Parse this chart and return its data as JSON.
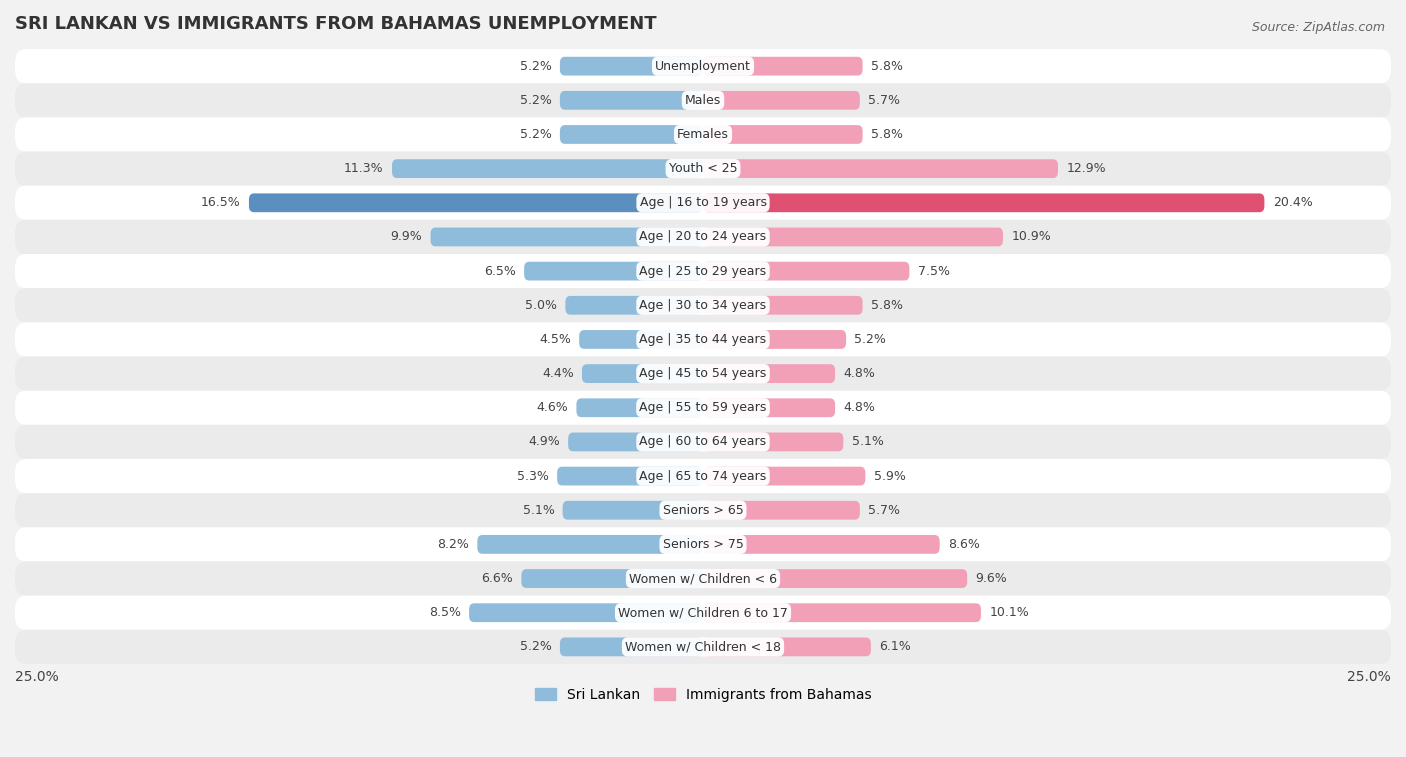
{
  "title": "SRI LANKAN VS IMMIGRANTS FROM BAHAMAS UNEMPLOYMENT",
  "source": "Source: ZipAtlas.com",
  "categories": [
    "Unemployment",
    "Males",
    "Females",
    "Youth < 25",
    "Age | 16 to 19 years",
    "Age | 20 to 24 years",
    "Age | 25 to 29 years",
    "Age | 30 to 34 years",
    "Age | 35 to 44 years",
    "Age | 45 to 54 years",
    "Age | 55 to 59 years",
    "Age | 60 to 64 years",
    "Age | 65 to 74 years",
    "Seniors > 65",
    "Seniors > 75",
    "Women w/ Children < 6",
    "Women w/ Children 6 to 17",
    "Women w/ Children < 18"
  ],
  "sri_lankan": [
    5.2,
    5.2,
    5.2,
    11.3,
    16.5,
    9.9,
    6.5,
    5.0,
    4.5,
    4.4,
    4.6,
    4.9,
    5.3,
    5.1,
    8.2,
    6.6,
    8.5,
    5.2
  ],
  "immigrants_bahamas": [
    5.8,
    5.7,
    5.8,
    12.9,
    20.4,
    10.9,
    7.5,
    5.8,
    5.2,
    4.8,
    4.8,
    5.1,
    5.9,
    5.7,
    8.6,
    9.6,
    10.1,
    6.1
  ],
  "sri_lankan_color": "#8fbcdb",
  "immigrants_color": "#f2a0b8",
  "sri_lankan_highlight_color": "#5b8fbf",
  "immigrants_highlight_color": "#e05070",
  "highlight_row": 4,
  "x_max": 25.0,
  "row_color_odd": "#f2f2f2",
  "row_color_even": "#e6e6e6",
  "background_color": "#f2f2f2",
  "legend_label_sri": "Sri Lankan",
  "legend_label_bahamas": "Immigrants from Bahamas",
  "title_fontsize": 13,
  "source_fontsize": 9,
  "label_fontsize": 9,
  "category_fontsize": 9
}
